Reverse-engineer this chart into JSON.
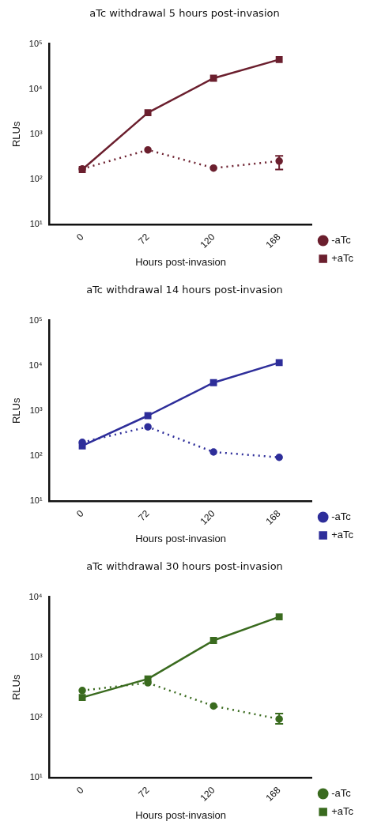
{
  "chart_data": [
    {
      "type": "line",
      "title": "aTc withdrawal 5 hours post-invasion",
      "xlabel": "Hours post-invasion",
      "ylabel": "RLUs",
      "categories": [
        "0",
        "72",
        "120",
        "168"
      ],
      "log": "y",
      "ylim": [
        10,
        100000
      ],
      "yticks": [
        {
          "value": 10,
          "label": "10¹"
        },
        {
          "value": 100,
          "label": "10²"
        },
        {
          "value": 1000,
          "label": "10³"
        },
        {
          "value": 10000,
          "label": "10⁴"
        },
        {
          "value": 100000,
          "label": "10⁵"
        }
      ],
      "grid": false,
      "legend": "bottom right",
      "series": [
        {
          "name": "-aTc",
          "color": "#6b1f2e",
          "values": [
            170,
            450,
            178,
            254
          ],
          "errors": [
            null,
            null,
            null,
            [
              165,
              330
            ]
          ],
          "line_style": "dotted",
          "marker": "circle"
        },
        {
          "name": "+aTc",
          "color": "#6b1f2e",
          "values": [
            165,
            3000,
            17400,
            45000
          ],
          "line_style": "solid",
          "marker": "square"
        }
      ]
    },
    {
      "type": "line",
      "title": "aTc withdrawal 14 hours post-invasion",
      "xlabel": "Hours post-invasion",
      "ylabel": "RLUs",
      "categories": [
        "0",
        "72",
        "120",
        "168"
      ],
      "log": "y",
      "ylim": [
        10,
        100000
      ],
      "yticks": [
        {
          "value": 10,
          "label": "10¹"
        },
        {
          "value": 100,
          "label": "10²"
        },
        {
          "value": 1000,
          "label": "10³"
        },
        {
          "value": 10000,
          "label": "10⁴"
        },
        {
          "value": 100000,
          "label": "10⁵"
        }
      ],
      "grid": false,
      "legend": "bottom right",
      "series": [
        {
          "name": "-aTc",
          "color": "#2e2e9a",
          "values": [
            200,
            440,
            122,
            93
          ],
          "line_style": "dotted",
          "marker": "circle"
        },
        {
          "name": "+aTc",
          "color": "#2e2e9a",
          "values": [
            167,
            780,
            4200,
            11700
          ],
          "line_style": "solid",
          "marker": "square"
        }
      ]
    },
    {
      "type": "line",
      "title": "aTc withdrawal 30 hours post-invasion",
      "xlabel": "Hours post-invasion",
      "ylabel": "RLUs",
      "categories": [
        "0",
        "72",
        "120",
        "168"
      ],
      "log": "y",
      "ylim": [
        10,
        10000
      ],
      "yticks": [
        {
          "value": 10,
          "label": "10¹"
        },
        {
          "value": 100,
          "label": "10²"
        },
        {
          "value": 1000,
          "label": "10³"
        },
        {
          "value": 10000,
          "label": "10⁴"
        }
      ],
      "grid": false,
      "legend": "bottom right",
      "series": [
        {
          "name": "-aTc",
          "color": "#3a6b1f",
          "values": [
            280,
            376,
            155,
            94
          ],
          "errors": [
            null,
            null,
            null,
            [
              78,
              116
            ]
          ],
          "line_style": "dotted",
          "marker": "circle"
        },
        {
          "name": "+aTc",
          "color": "#3a6b1f",
          "values": [
            215,
            437,
            1900,
            4700
          ],
          "line_style": "solid",
          "marker": "square"
        }
      ]
    }
  ]
}
